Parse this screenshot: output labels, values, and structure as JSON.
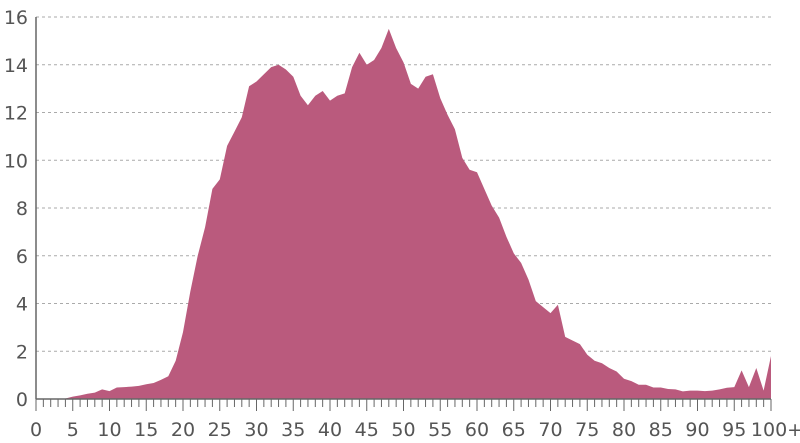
{
  "chart_data": {
    "type": "area",
    "title": "",
    "xlabel": "",
    "ylabel": "",
    "xlim": [
      0,
      100
    ],
    "ylim": [
      0,
      16
    ],
    "grid": true,
    "fill_color": "#ba5a7d",
    "x_tick_labels": [
      "0",
      "5",
      "10",
      "15",
      "20",
      "25",
      "30",
      "35",
      "40",
      "45",
      "50",
      "55",
      "60",
      "65",
      "70",
      "75",
      "80",
      "85",
      "90",
      "95",
      "100+"
    ],
    "y_tick_labels": [
      "0",
      "2",
      "4",
      "6",
      "8",
      "10",
      "12",
      "14",
      "16"
    ],
    "y_ticks": [
      0,
      2,
      4,
      6,
      8,
      10,
      12,
      14,
      16
    ],
    "x": [
      0,
      1,
      2,
      3,
      4,
      5,
      6,
      7,
      8,
      9,
      10,
      11,
      12,
      13,
      14,
      15,
      16,
      17,
      18,
      19,
      20,
      21,
      22,
      23,
      24,
      25,
      26,
      27,
      28,
      29,
      30,
      31,
      32,
      33,
      34,
      35,
      36,
      37,
      38,
      39,
      40,
      41,
      42,
      43,
      44,
      45,
      46,
      47,
      48,
      49,
      50,
      51,
      52,
      53,
      54,
      55,
      56,
      57,
      58,
      59,
      60,
      61,
      62,
      63,
      64,
      65,
      66,
      67,
      68,
      69,
      70,
      71,
      72,
      73,
      74,
      75,
      76,
      77,
      78,
      79,
      80,
      81,
      82,
      83,
      84,
      85,
      86,
      87,
      88,
      89,
      90,
      91,
      92,
      93,
      94,
      95,
      96,
      97,
      98,
      99,
      100
    ],
    "values": [
      0,
      0,
      0,
      0,
      0.02,
      0.1,
      0.15,
      0.22,
      0.27,
      0.4,
      0.33,
      0.48,
      0.5,
      0.52,
      0.55,
      0.62,
      0.67,
      0.8,
      0.95,
      1.6,
      2.8,
      4.5,
      6.0,
      7.2,
      8.8,
      9.2,
      10.6,
      11.2,
      11.8,
      13.1,
      13.3,
      13.6,
      13.9,
      14.0,
      13.8,
      13.5,
      12.7,
      12.3,
      12.7,
      12.9,
      12.5,
      12.7,
      12.8,
      13.9,
      14.5,
      14.0,
      14.2,
      14.7,
      15.5,
      14.7,
      14.1,
      13.2,
      13.0,
      13.5,
      13.6,
      12.6,
      11.9,
      11.3,
      10.1,
      9.6,
      9.5,
      8.8,
      8.1,
      7.6,
      6.8,
      6.1,
      5.7,
      5.0,
      4.1,
      3.85,
      3.6,
      3.95,
      2.6,
      2.45,
      2.3,
      1.85,
      1.6,
      1.5,
      1.3,
      1.15,
      0.85,
      0.75,
      0.6,
      0.6,
      0.48,
      0.48,
      0.42,
      0.4,
      0.32,
      0.35,
      0.35,
      0.33,
      0.35,
      0.4,
      0.47,
      0.5,
      1.2,
      0.5,
      1.3,
      0.35,
      1.8
    ]
  }
}
